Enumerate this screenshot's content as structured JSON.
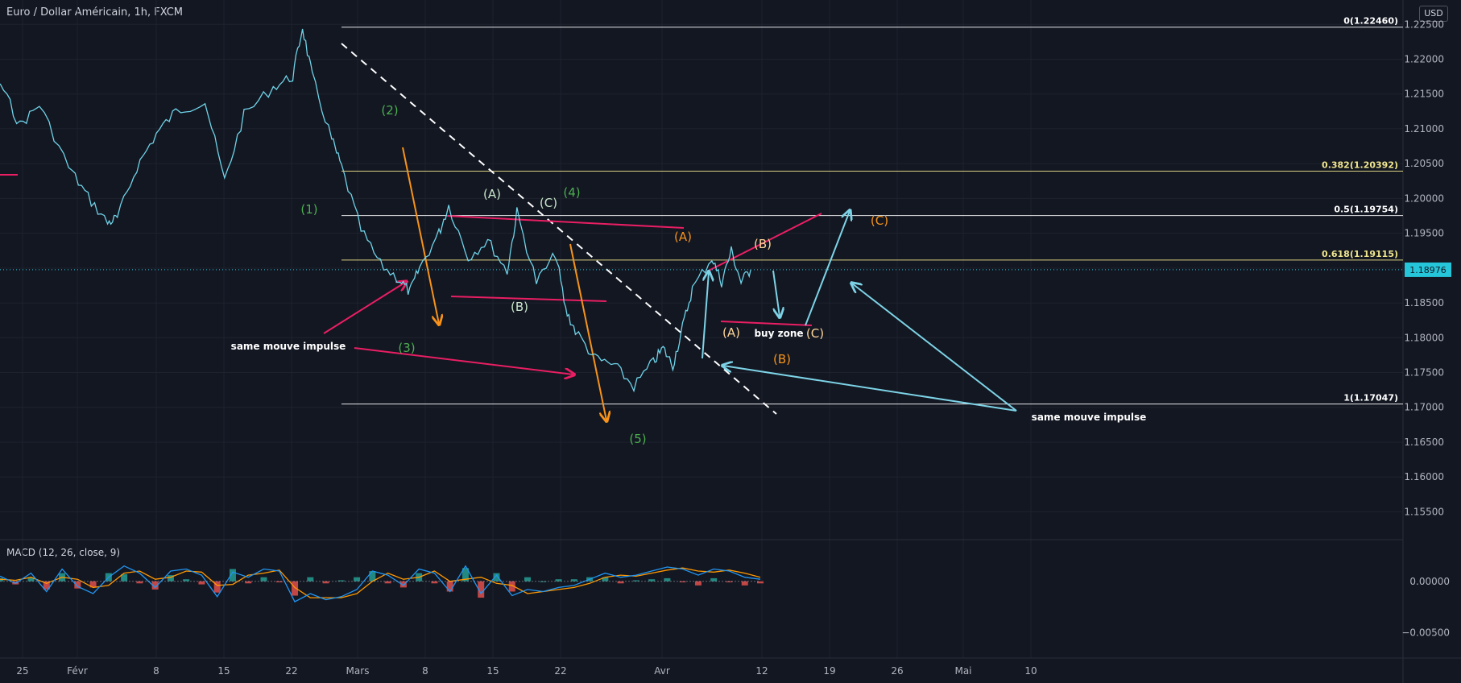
{
  "header": {
    "title": "Euro / Dollar Américain, 1h, FXCM",
    "currency": "USD"
  },
  "macd": {
    "title": "MACD (12, 26, close, 9)"
  },
  "colors": {
    "background": "#131722",
    "price_line": "#6fd3e8",
    "white_level": "#ffffff",
    "fib_yellow": "#f0e68c",
    "magenta": "#e91e63",
    "orange": "#f7931a",
    "green_label": "#4caf50",
    "cyan_arrow": "#7dd3e6",
    "badge_bg": "#26c6da"
  },
  "chart_data": [
    {
      "type": "line",
      "title": "Euro / Dollar Américain, 1h, FXCM",
      "xlabel": "",
      "ylabel": "",
      "x_ticks": [
        "25",
        "Févr",
        "8",
        "15",
        "22",
        "Mars",
        "8",
        "15",
        "22",
        "Avr",
        "12",
        "19",
        "26",
        "Mai",
        "10"
      ],
      "y_ticks": [
        "1.15500",
        "1.16000",
        "1.16500",
        "1.17000",
        "1.17500",
        "1.18000",
        "1.18500",
        "1.19000",
        "1.19500",
        "1.20000",
        "1.20500",
        "1.21000",
        "1.21500",
        "1.22000",
        "1.22500"
      ],
      "ylim": [
        1.151,
        1.2285
      ],
      "current_price": "1.18976",
      "series": [
        {
          "x": [
            "Jan 18",
            "Jan 20",
            "Jan 22",
            "Jan 25",
            "Jan 27",
            "Jan 29",
            "Feb 1",
            "Feb 3",
            "Feb 5",
            "Feb 6",
            "Feb 8",
            "Feb 10",
            "Feb 12",
            "Feb 15",
            "Feb 17",
            "Feb 19",
            "Feb 22",
            "Feb 24",
            "Feb 25",
            "Feb 26",
            "Feb 28",
            "Mar 1",
            "Mar 3",
            "Mar 5",
            "Mar 7",
            "Mar 8",
            "Mar 9",
            "Mar 11",
            "Mar 12",
            "Mar 14",
            "Mar 16",
            "Mar 18",
            "Mar 19",
            "Mar 21",
            "Mar 23",
            "Mar 24",
            "Mar 25",
            "Mar 27",
            "Mar 29",
            "Mar 31",
            "Apr 2",
            "Apr 3",
            "Apr 4",
            "Apr 5",
            "Apr 6",
            "Apr 8",
            "Apr 9",
            "Apr 10",
            "Apr 11",
            "Apr 12"
          ],
          "values": [
            1.2135,
            1.2175,
            1.2145,
            1.2165,
            1.2105,
            1.2135,
            1.2045,
            1.2002,
            1.1965,
            1.1972,
            1.2045,
            1.2093,
            1.2125,
            1.214,
            1.2025,
            1.212,
            1.216,
            1.2175,
            1.2246,
            1.2175,
            1.2085,
            1.2045,
            1.1955,
            1.1905,
            1.1883,
            1.1865,
            1.19,
            1.195,
            1.199,
            1.1915,
            1.194,
            1.1895,
            1.198,
            1.188,
            1.192,
            1.184,
            1.181,
            1.177,
            1.176,
            1.173,
            1.1765,
            1.1785,
            1.176,
            1.1815,
            1.187,
            1.1915,
            1.188,
            1.1925,
            1.188,
            1.1898
          ]
        }
      ],
      "levels": [
        {
          "label": "0(1.22460)",
          "value": 1.2246
        },
        {
          "label": "0.382(1.20392)",
          "value": 1.20392
        },
        {
          "label": "0.5(1.19754)",
          "value": 1.19754
        },
        {
          "label": "0.618(1.19115)",
          "value": 1.19115
        },
        {
          "label": "1(1.17047)",
          "value": 1.17047
        }
      ],
      "annotations": [
        {
          "text": "(1)",
          "group": "green"
        },
        {
          "text": "(2)",
          "group": "green"
        },
        {
          "text": "(3)",
          "group": "green"
        },
        {
          "text": "(4)",
          "group": "green"
        },
        {
          "text": "(5)",
          "group": "green"
        },
        {
          "text": "(A)",
          "group": "pale"
        },
        {
          "text": "(B)",
          "group": "pale"
        },
        {
          "text": "(C)",
          "group": "pale"
        },
        {
          "text": "(A)",
          "group": "orange"
        },
        {
          "text": "(B)",
          "group": "orange"
        },
        {
          "text": "(C)",
          "group": "orange"
        },
        {
          "text": "(A)",
          "group": "peach"
        },
        {
          "text": "(B)",
          "group": "peach"
        },
        {
          "text": "(C)",
          "group": "peach"
        },
        {
          "text": "buy zone",
          "group": "white"
        },
        {
          "text": "same mouve impulse",
          "group": "white"
        },
        {
          "text": "same mouve impulse",
          "group": "white"
        }
      ]
    },
    {
      "type": "line",
      "title": "MACD (12, 26, close, 9)",
      "y_ticks": [
        "0.00000",
        "−0.00500"
      ],
      "ylim": [
        -0.0075,
        0.0025
      ],
      "series": [
        {
          "name": "MACD",
          "values": [
            0.0005,
            -0.0002,
            0.0008,
            -0.001,
            0.0012,
            -0.0005,
            -0.0012,
            0.0004,
            0.0015,
            0.0008,
            -0.0006,
            0.001,
            0.0012,
            0.0006,
            -0.0015,
            0.0009,
            0.0004,
            0.0012,
            0.001,
            -0.002,
            -0.0012,
            -0.0018,
            -0.0015,
            -0.0008,
            0.001,
            0.0006,
            -0.0004,
            0.0012,
            0.0008,
            -0.001,
            0.0015,
            -0.0012,
            0.0006,
            -0.0014,
            -0.0008,
            -0.001,
            -0.0006,
            -0.0004,
            0.0002,
            0.0008,
            0.0004,
            0.0006,
            0.001,
            0.0014,
            0.0012,
            0.0006,
            0.0012,
            0.001,
            0.0004,
            0.0002
          ]
        },
        {
          "name": "Signal",
          "values": [
            0.0002,
            0.0001,
            0.0004,
            -0.0002,
            0.0004,
            0.0002,
            -0.0006,
            -0.0004,
            0.0008,
            0.001,
            0.0002,
            0.0004,
            0.001,
            0.0009,
            -0.0004,
            -0.0003,
            0.0006,
            0.0008,
            0.0011,
            -0.0006,
            -0.0016,
            -0.0016,
            -0.0016,
            -0.0012,
            0.0,
            0.0008,
            0.0002,
            0.0004,
            0.001,
            0.0,
            0.0002,
            0.0004,
            -0.0002,
            -0.0004,
            -0.0012,
            -0.001,
            -0.0008,
            -0.0006,
            -0.0002,
            0.0004,
            0.0006,
            0.0005,
            0.0008,
            0.0011,
            0.0013,
            0.001,
            0.0009,
            0.0011,
            0.0008,
            0.0004
          ]
        }
      ]
    }
  ]
}
